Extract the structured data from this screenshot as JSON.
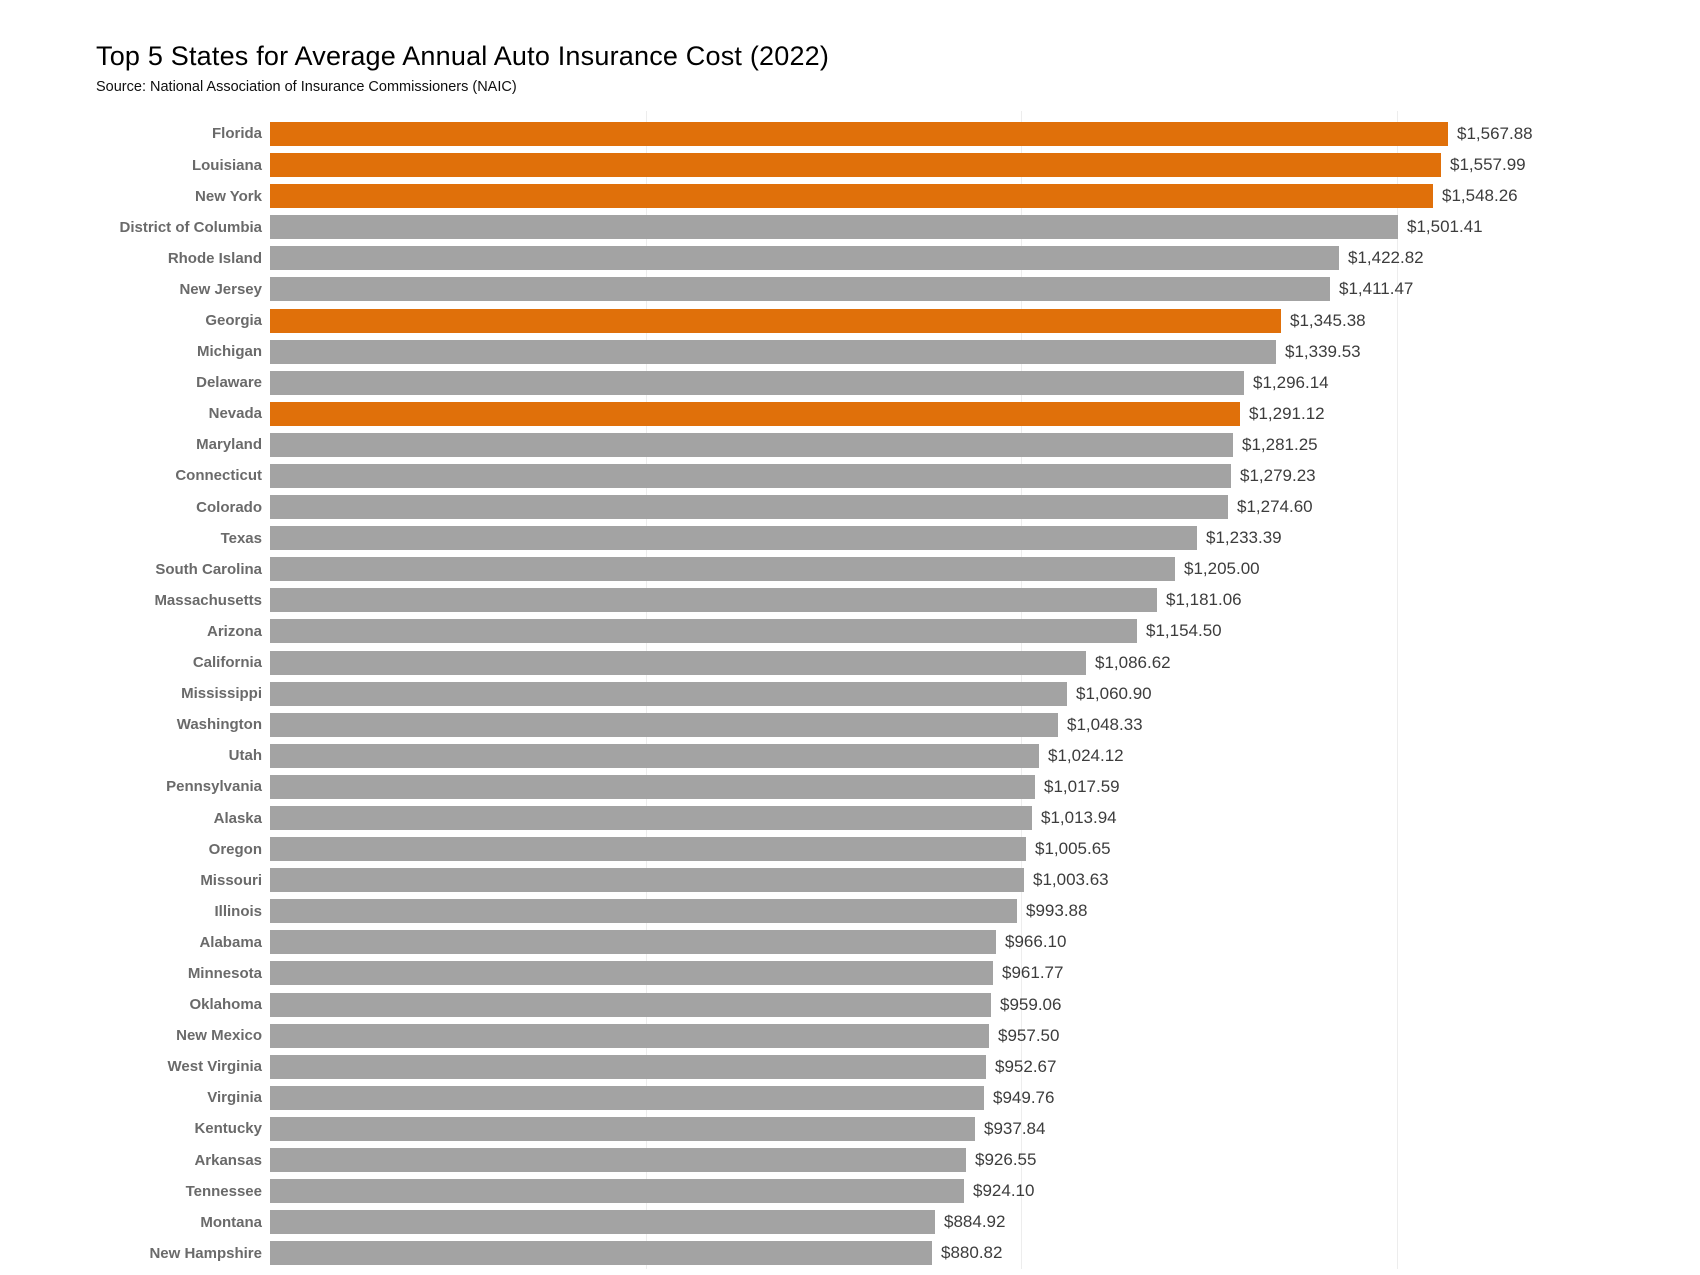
{
  "page": {
    "title": "Top 5 States for Average Annual Auto Insurance Cost (2022)",
    "subtitle": "Source: National Association of Insurance Commissioners (NAIC)"
  },
  "colors": {
    "highlight": "#E0700A",
    "bar_default": "#A3A3A3",
    "gridline": "#EDEDED"
  },
  "chart_data": {
    "type": "bar",
    "orientation": "horizontal",
    "title": "Top 5 States for Average Annual Auto Insurance Cost (2022)",
    "subtitle": "Source: National Association of Insurance Commissioners (NAIC)",
    "sort": "descending",
    "legend": false,
    "grid": true,
    "x_axis": {
      "min": 0,
      "gridlines": [
        500,
        1000,
        1500
      ],
      "tick_labels_visible": false
    },
    "categories": [
      "Florida",
      "Louisiana",
      "New York",
      "District of Columbia",
      "Rhode Island",
      "New Jersey",
      "Georgia",
      "Michigan",
      "Delaware",
      "Nevada",
      "Maryland",
      "Connecticut",
      "Colorado",
      "Texas",
      "South Carolina",
      "Massachusetts",
      "Arizona",
      "California",
      "Mississippi",
      "Washington",
      "Utah",
      "Pennsylvania",
      "Alaska",
      "Oregon",
      "Missouri",
      "Illinois",
      "Alabama",
      "Minnesota",
      "Oklahoma",
      "New Mexico",
      "West Virginia",
      "Virginia",
      "Kentucky",
      "Arkansas",
      "Tennessee",
      "Montana",
      "New Hampshire"
    ],
    "values": [
      1567.88,
      1557.99,
      1548.26,
      1501.41,
      1422.82,
      1411.47,
      1345.38,
      1339.53,
      1296.14,
      1291.12,
      1281.25,
      1279.23,
      1274.6,
      1233.39,
      1205.0,
      1181.06,
      1154.5,
      1086.62,
      1060.9,
      1048.33,
      1024.12,
      1017.59,
      1013.94,
      1005.65,
      1003.63,
      993.88,
      966.1,
      961.77,
      959.06,
      957.5,
      952.67,
      949.76,
      937.84,
      926.55,
      924.1,
      884.92,
      880.82
    ],
    "value_labels": [
      "$1,567.88",
      "$1,557.99",
      "$1,548.26",
      "$1,501.41",
      "$1,422.82",
      "$1,411.47",
      "$1,345.38",
      "$1,339.53",
      "$1,296.14",
      "$1,291.12",
      "$1,281.25",
      "$1,279.23",
      "$1,274.60",
      "$1,233.39",
      "$1,205.00",
      "$1,181.06",
      "$1,154.50",
      "$1,086.62",
      "$1,060.90",
      "$1,048.33",
      "$1,024.12",
      "$1,017.59",
      "$1,013.94",
      "$1,005.65",
      "$1,003.63",
      "$993.88",
      "$966.10",
      "$961.77",
      "$959.06",
      "$957.50",
      "$952.67",
      "$949.76",
      "$937.84",
      "$926.55",
      "$924.10",
      "$884.92",
      "$880.82"
    ],
    "highlighted_categories": [
      "Florida",
      "Louisiana",
      "New York",
      "Georgia",
      "Nevada"
    ]
  }
}
